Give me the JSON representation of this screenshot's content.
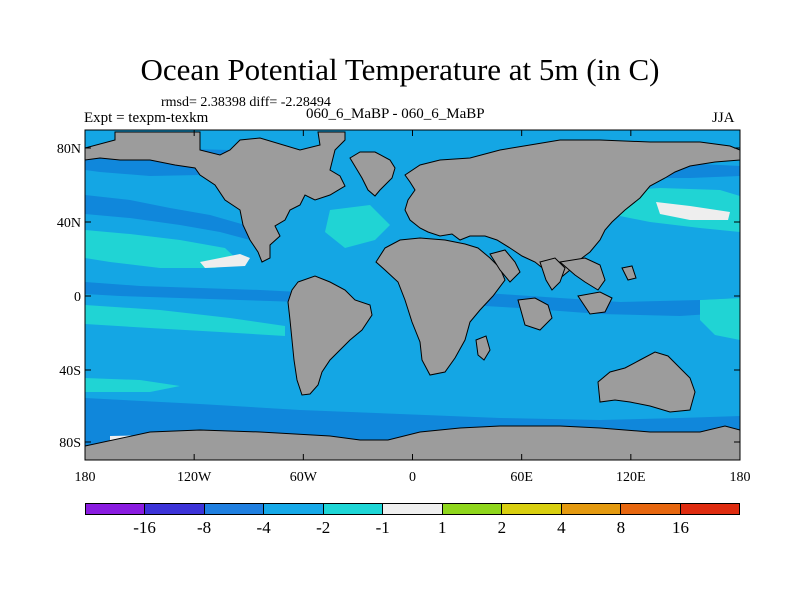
{
  "title": "Ocean Potential Temperature at 5m (in C)",
  "stats": "rmsd= 2.38398 diff= -2.28494",
  "expt_label": "Expt = texpm-texkm",
  "center_label": "060_6_MaBP - 060_6_MaBP",
  "season": "JJA",
  "y_ticks": [
    "80N",
    "40N",
    "0",
    "40S",
    "80S"
  ],
  "x_ticks": [
    "180",
    "120W",
    "60W",
    "0",
    "60E",
    "120E",
    "180"
  ],
  "colors": {
    "land": "#9c9c9c",
    "ocean_base": "#14a6e4",
    "ocean_cool": "#1087db",
    "ocean_warm": "#20d4d4",
    "near_zero": "#eeeeee"
  },
  "colorbar": {
    "colors": [
      "#8a1ce0",
      "#3c33d8",
      "#1f7fe0",
      "#16a9e8",
      "#1ed6d6",
      "#efefef",
      "#8fd61c",
      "#d9cf10",
      "#e49a10",
      "#e7670f",
      "#df2c10"
    ],
    "labels": [
      "-16",
      "-8",
      "-4",
      "-2",
      "-1",
      "1",
      "2",
      "4",
      "8",
      "16"
    ]
  }
}
